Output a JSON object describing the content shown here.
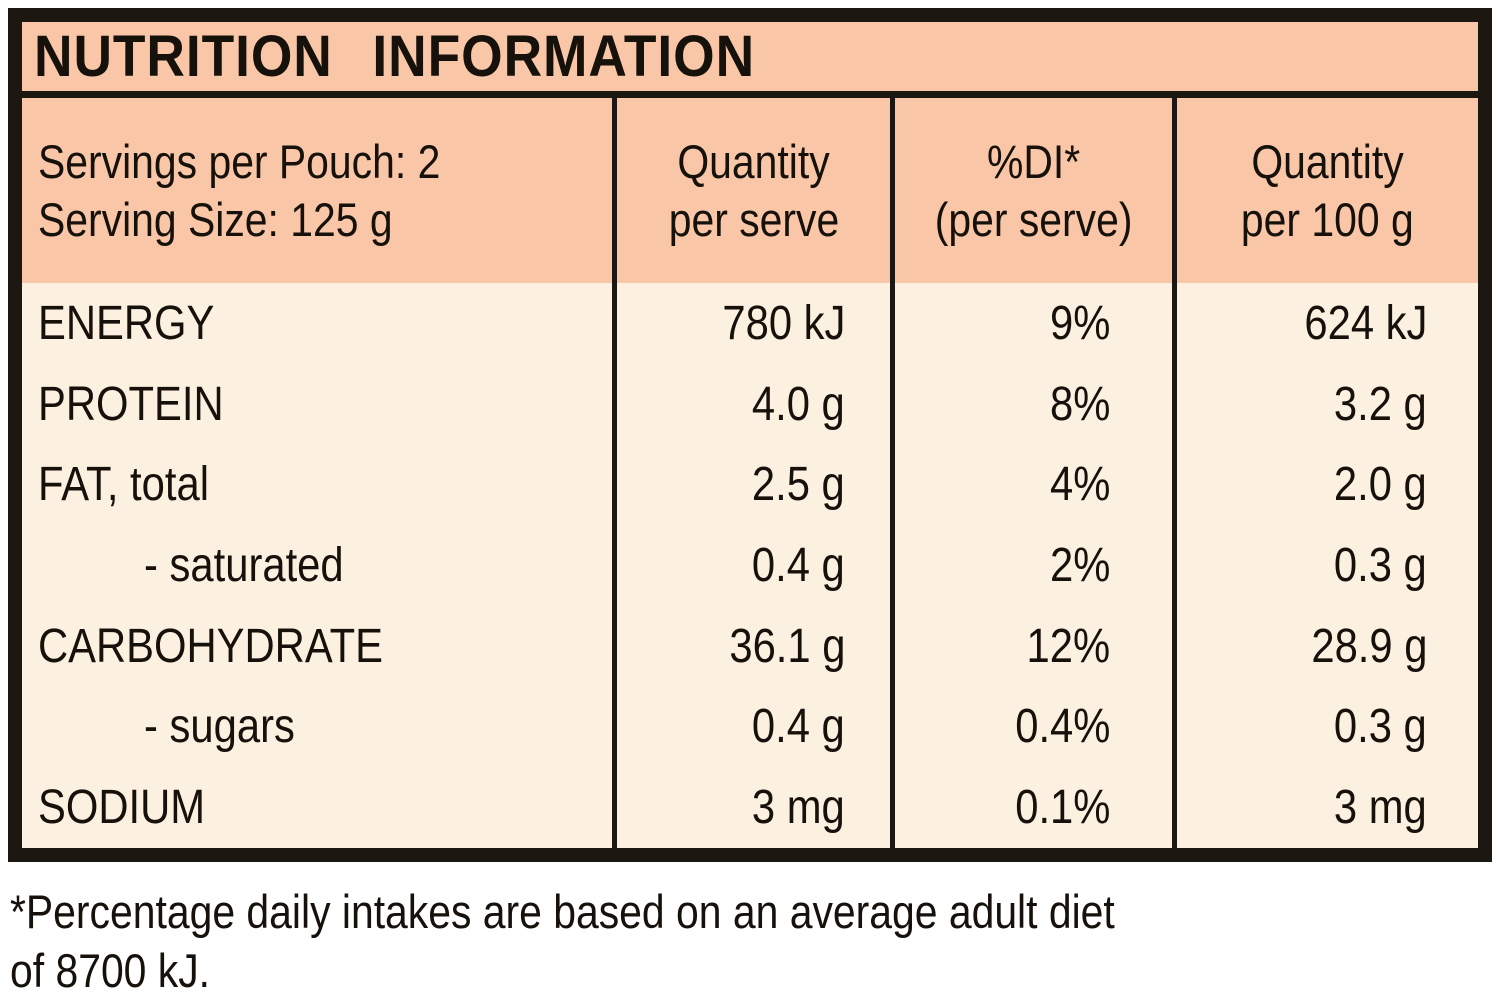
{
  "title": "NUTRITION INFORMATION",
  "colors": {
    "header_bg": "#f9c7a8",
    "body_bg": "#fcf0e1",
    "border": "#1d1712"
  },
  "table": {
    "serving_info": {
      "line1": "Servings per Pouch: 2",
      "line2": "Serving Size: 125 g"
    },
    "columns": {
      "per_serve": {
        "line1": "Quantity",
        "line2": "per serve"
      },
      "di": {
        "line1": "%DI*",
        "line2": "(per serve)"
      },
      "per_100g": {
        "line1": "Quantity",
        "line2": "per 100 g"
      }
    },
    "rows": [
      {
        "nutrient": "ENERGY",
        "indent": false,
        "per_serve": "780 kJ",
        "di_percent": "9%",
        "per_100g": "624 kJ"
      },
      {
        "nutrient": "PROTEIN",
        "indent": false,
        "per_serve": "4.0 g",
        "di_percent": "8%",
        "per_100g": "3.2 g"
      },
      {
        "nutrient": "FAT, total",
        "indent": false,
        "per_serve": "2.5 g",
        "di_percent": "4%",
        "per_100g": "2.0 g"
      },
      {
        "nutrient": "- saturated",
        "indent": true,
        "per_serve": "0.4 g",
        "di_percent": "2%",
        "per_100g": "0.3 g"
      },
      {
        "nutrient": "CARBOHYDRATE",
        "indent": false,
        "per_serve": "36.1 g",
        "di_percent": "12%",
        "per_100g": "28.9 g"
      },
      {
        "nutrient": "- sugars",
        "indent": true,
        "per_serve": "0.4 g",
        "di_percent": "0.4%",
        "per_100g": "0.3 g"
      },
      {
        "nutrient": "SODIUM",
        "indent": false,
        "per_serve": "3 mg",
        "di_percent": "0.1%",
        "per_100g": "3 mg"
      }
    ]
  },
  "footnote": {
    "line1": "*Percentage daily intakes are based on an average adult diet",
    "line2": "of 8700 kJ."
  }
}
